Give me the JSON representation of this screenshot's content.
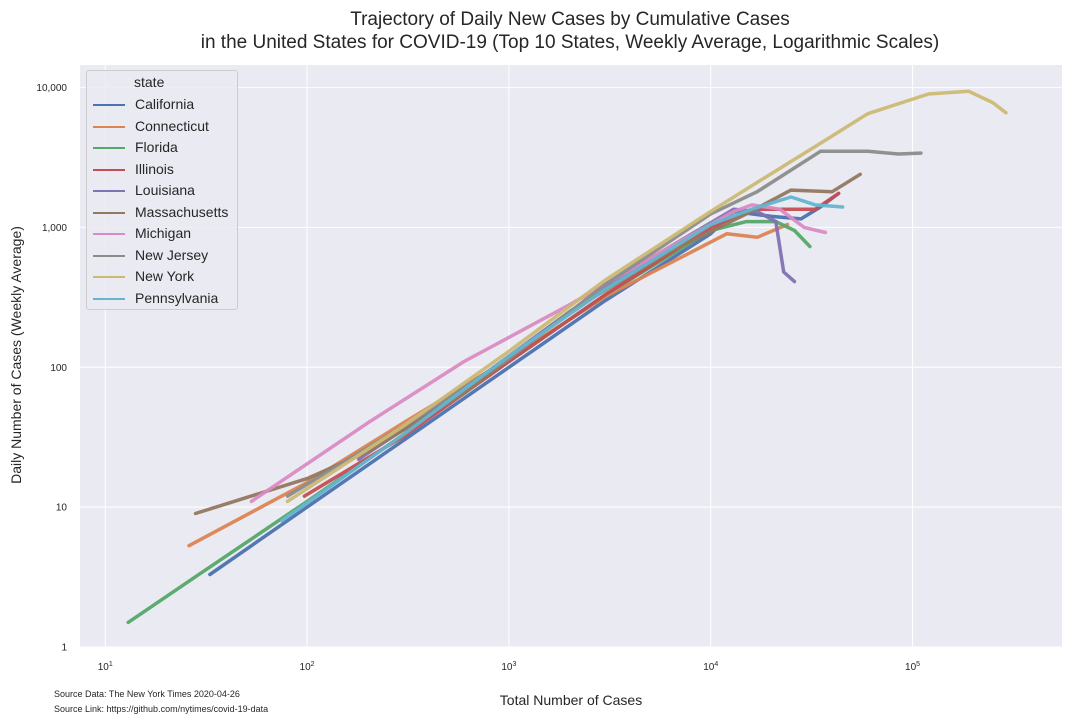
{
  "chart_data": {
    "type": "line",
    "title_line1": "Trajectory of Daily New Cases by Cumulative Cases",
    "title_line2": "in the United States for COVID-19 (Top 10 States, Weekly Average, Logarithmic Scales)",
    "xlabel": "Total Number of Cases",
    "ylabel": "Daily Number of Cases (Weekly Average)",
    "xscale": "log",
    "yscale": "log",
    "xlim": [
      7.5,
      550000
    ],
    "ylim": [
      1,
      14500
    ],
    "x_ticks": [
      {
        "value": 10,
        "base": "10",
        "exp": "1"
      },
      {
        "value": 100,
        "base": "10",
        "exp": "2"
      },
      {
        "value": 1000,
        "base": "10",
        "exp": "3"
      },
      {
        "value": 10000,
        "base": "10",
        "exp": "4"
      },
      {
        "value": 100000,
        "base": "10",
        "exp": "5"
      }
    ],
    "y_ticks": [
      {
        "value": 1,
        "label": "1"
      },
      {
        "value": 10,
        "label": "10"
      },
      {
        "value": 100,
        "label": "100"
      },
      {
        "value": 1000,
        "label": "1,000"
      },
      {
        "value": 10000,
        "label": "10,000"
      }
    ],
    "grid": true,
    "legend_title": "state",
    "legend_position": "top-left",
    "series": [
      {
        "name": "California",
        "color": "#4c72b0",
        "points": [
          [
            33,
            3.3
          ],
          [
            100,
            10
          ],
          [
            300,
            30
          ],
          [
            1000,
            100
          ],
          [
            3000,
            300
          ],
          [
            10000,
            900
          ],
          [
            13000,
            1300
          ],
          [
            20000,
            1200
          ],
          [
            28000,
            1150
          ],
          [
            35000,
            1400
          ],
          [
            43000,
            1750
          ]
        ]
      },
      {
        "name": "Connecticut",
        "color": "#dd8452",
        "points": [
          [
            26,
            5.3
          ],
          [
            100,
            15
          ],
          [
            300,
            40
          ],
          [
            1000,
            115
          ],
          [
            3000,
            320
          ],
          [
            12000,
            900
          ],
          [
            17000,
            850
          ],
          [
            24000,
            1050
          ]
        ]
      },
      {
        "name": "Florida",
        "color": "#55a868",
        "points": [
          [
            13,
            1.5
          ],
          [
            30,
            3.4
          ],
          [
            100,
            11
          ],
          [
            300,
            33
          ],
          [
            1000,
            110
          ],
          [
            3000,
            330
          ],
          [
            10000,
            950
          ],
          [
            15000,
            1100
          ],
          [
            21000,
            1100
          ],
          [
            26000,
            950
          ],
          [
            31000,
            730
          ]
        ]
      },
      {
        "name": "Illinois",
        "color": "#c44e52",
        "points": [
          [
            97,
            12
          ],
          [
            300,
            32
          ],
          [
            1000,
            110
          ],
          [
            3000,
            330
          ],
          [
            10000,
            1000
          ],
          [
            17000,
            1350
          ],
          [
            25000,
            1350
          ],
          [
            33000,
            1350
          ],
          [
            43000,
            1750
          ]
        ]
      },
      {
        "name": "Louisiana",
        "color": "#8172b3",
        "points": [
          [
            180,
            22
          ],
          [
            600,
            70
          ],
          [
            2000,
            250
          ],
          [
            6000,
            700
          ],
          [
            13000,
            1350
          ],
          [
            17000,
            1300
          ],
          [
            21000,
            1100
          ],
          [
            23000,
            480
          ],
          [
            26000,
            410
          ]
        ]
      },
      {
        "name": "Massachusetts",
        "color": "#937860",
        "points": [
          [
            28,
            9
          ],
          [
            100,
            16
          ],
          [
            200,
            25
          ],
          [
            600,
            65
          ],
          [
            2000,
            250
          ],
          [
            6000,
            650
          ],
          [
            15000,
            1250
          ],
          [
            25000,
            1850
          ],
          [
            40000,
            1800
          ],
          [
            55000,
            2400
          ]
        ]
      },
      {
        "name": "Michigan",
        "color": "#da8bc3",
        "points": [
          [
            53,
            11
          ],
          [
            200,
            40
          ],
          [
            600,
            110
          ],
          [
            2000,
            280
          ],
          [
            6000,
            700
          ],
          [
            13000,
            1300
          ],
          [
            16000,
            1450
          ],
          [
            22000,
            1350
          ],
          [
            29000,
            1000
          ],
          [
            37000,
            920
          ]
        ]
      },
      {
        "name": "New Jersey",
        "color": "#8c8c8c",
        "points": [
          [
            80,
            12
          ],
          [
            300,
            38
          ],
          [
            1000,
            115
          ],
          [
            3000,
            390
          ],
          [
            10000,
            1250
          ],
          [
            17000,
            1800
          ],
          [
            35000,
            3500
          ],
          [
            60000,
            3500
          ],
          [
            85000,
            3350
          ],
          [
            110000,
            3400
          ]
        ]
      },
      {
        "name": "New York",
        "color": "#ccb974",
        "points": [
          [
            80,
            11
          ],
          [
            300,
            38
          ],
          [
            1000,
            130
          ],
          [
            3000,
            420
          ],
          [
            10000,
            1300
          ],
          [
            17000,
            2100
          ],
          [
            35000,
            4000
          ],
          [
            60000,
            6500
          ],
          [
            120000,
            9000
          ],
          [
            190000,
            9400
          ],
          [
            250000,
            7800
          ],
          [
            290000,
            6600
          ]
        ]
      },
      {
        "name": "Pennsylvania",
        "color": "#64b5cd",
        "points": [
          [
            75,
            8
          ],
          [
            300,
            33
          ],
          [
            1000,
            120
          ],
          [
            3000,
            360
          ],
          [
            10000,
            1050
          ],
          [
            16000,
            1350
          ],
          [
            25000,
            1650
          ],
          [
            33000,
            1450
          ],
          [
            45000,
            1400
          ]
        ]
      }
    ]
  },
  "source": {
    "data": "Source Data: The New York Times 2020-04-26",
    "link": "Source Link: https://github.com/nytimes/covid-19-data"
  }
}
